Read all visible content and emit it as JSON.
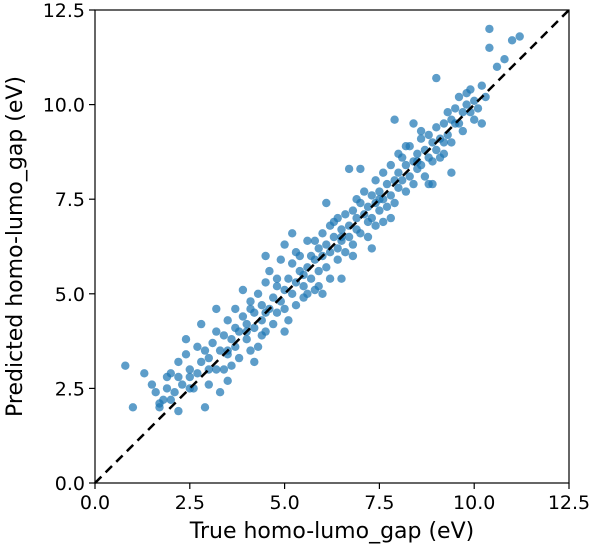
{
  "chart_data": {
    "type": "scatter",
    "title": "",
    "xlabel": "True homo-lumo_gap (eV)",
    "ylabel": "Predicted homo-lumo_gap (eV)",
    "xlim": [
      0.0,
      12.5
    ],
    "ylim": [
      0.0,
      12.5
    ],
    "xticks": [
      "0.0",
      "2.5",
      "5.0",
      "7.5",
      "10.0",
      "12.5"
    ],
    "yticks": [
      "0.0",
      "2.5",
      "5.0",
      "7.5",
      "10.0",
      "12.5"
    ],
    "grid": false,
    "legend": "none",
    "point_color": "#1f77b4",
    "reference_line": {
      "style": "dashed",
      "color": "#000000",
      "from": [
        0.0,
        0.0
      ],
      "to": [
        12.5,
        12.5
      ]
    },
    "series": [
      {
        "points": [
          [
            0.8,
            3.1
          ],
          [
            1.0,
            2.0
          ],
          [
            1.3,
            2.9
          ],
          [
            1.5,
            2.6
          ],
          [
            1.6,
            2.4
          ],
          [
            1.7,
            2.0
          ],
          [
            1.7,
            2.1
          ],
          [
            1.8,
            2.2
          ],
          [
            1.9,
            2.5
          ],
          [
            2.0,
            2.2
          ],
          [
            2.0,
            2.9
          ],
          [
            2.1,
            2.4
          ],
          [
            2.2,
            2.8
          ],
          [
            2.2,
            3.2
          ],
          [
            2.3,
            2.6
          ],
          [
            2.4,
            3.4
          ],
          [
            2.5,
            2.8
          ],
          [
            2.5,
            3.0
          ],
          [
            2.6,
            2.5
          ],
          [
            2.7,
            3.6
          ],
          [
            2.7,
            2.9
          ],
          [
            2.8,
            3.2
          ],
          [
            2.8,
            4.2
          ],
          [
            2.9,
            2.0
          ],
          [
            3.0,
            3.3
          ],
          [
            3.0,
            2.6
          ],
          [
            3.1,
            3.7
          ],
          [
            3.2,
            3.0
          ],
          [
            3.2,
            4.0
          ],
          [
            3.3,
            3.5
          ],
          [
            3.3,
            2.4
          ],
          [
            3.4,
            3.9
          ],
          [
            3.5,
            3.4
          ],
          [
            3.5,
            4.3
          ],
          [
            3.6,
            3.1
          ],
          [
            3.6,
            3.8
          ],
          [
            3.7,
            4.6
          ],
          [
            3.7,
            3.6
          ],
          [
            3.8,
            4.0
          ],
          [
            3.8,
            3.3
          ],
          [
            3.9,
            4.4
          ],
          [
            3.9,
            5.1
          ],
          [
            4.0,
            3.8
          ],
          [
            4.0,
            4.2
          ],
          [
            4.1,
            3.5
          ],
          [
            4.1,
            4.8
          ],
          [
            4.2,
            4.1
          ],
          [
            4.2,
            4.5
          ],
          [
            4.3,
            3.6
          ],
          [
            4.3,
            5.0
          ],
          [
            4.4,
            4.3
          ],
          [
            4.4,
            4.7
          ],
          [
            4.5,
            4.0
          ],
          [
            4.5,
            5.3
          ],
          [
            4.6,
            4.6
          ],
          [
            4.6,
            5.6
          ],
          [
            4.7,
            4.2
          ],
          [
            4.7,
            4.9
          ],
          [
            4.8,
            5.2
          ],
          [
            4.8,
            4.5
          ],
          [
            4.9,
            4.8
          ],
          [
            4.9,
            5.9
          ],
          [
            5.0,
            4.6
          ],
          [
            5.0,
            5.1
          ],
          [
            5.0,
            6.3
          ],
          [
            5.1,
            5.4
          ],
          [
            5.1,
            4.3
          ],
          [
            5.2,
            5.0
          ],
          [
            5.2,
            5.8
          ],
          [
            5.3,
            5.3
          ],
          [
            5.3,
            4.7
          ],
          [
            5.4,
            5.6
          ],
          [
            5.4,
            6.0
          ],
          [
            5.5,
            5.2
          ],
          [
            5.5,
            4.9
          ],
          [
            5.6,
            5.7
          ],
          [
            5.6,
            6.4
          ],
          [
            5.7,
            5.4
          ],
          [
            5.7,
            6.0
          ],
          [
            5.8,
            5.9
          ],
          [
            5.8,
            5.1
          ],
          [
            5.9,
            6.2
          ],
          [
            5.9,
            5.6
          ],
          [
            6.0,
            6.0
          ],
          [
            6.0,
            6.6
          ],
          [
            6.1,
            5.7
          ],
          [
            6.1,
            6.3
          ],
          [
            6.2,
            6.1
          ],
          [
            6.2,
            5.4
          ],
          [
            6.3,
            6.5
          ],
          [
            6.3,
            6.9
          ],
          [
            6.4,
            6.2
          ],
          [
            6.4,
            5.9
          ],
          [
            6.5,
            6.7
          ],
          [
            6.5,
            6.4
          ],
          [
            6.6,
            7.1
          ],
          [
            6.6,
            6.1
          ],
          [
            6.7,
            6.8
          ],
          [
            6.7,
            6.5
          ],
          [
            6.8,
            7.2
          ],
          [
            6.8,
            6.3
          ],
          [
            6.9,
            7.0
          ],
          [
            6.9,
            6.7
          ],
          [
            7.0,
            7.4
          ],
          [
            7.0,
            6.6
          ],
          [
            7.1,
            7.1
          ],
          [
            7.1,
            7.7
          ],
          [
            7.2,
            6.9
          ],
          [
            7.2,
            7.3
          ],
          [
            7.3,
            7.6
          ],
          [
            7.3,
            7.0
          ],
          [
            7.4,
            7.4
          ],
          [
            7.4,
            8.0
          ],
          [
            7.5,
            7.2
          ],
          [
            7.5,
            7.7
          ],
          [
            7.6,
            7.5
          ],
          [
            7.6,
            8.2
          ],
          [
            7.7,
            7.3
          ],
          [
            7.7,
            7.9
          ],
          [
            7.8,
            8.4
          ],
          [
            7.8,
            7.6
          ],
          [
            7.9,
            8.0
          ],
          [
            7.9,
            7.4
          ],
          [
            8.0,
            8.2
          ],
          [
            8.0,
            7.8
          ],
          [
            8.1,
            8.6
          ],
          [
            8.1,
            8.0
          ],
          [
            8.2,
            7.7
          ],
          [
            8.2,
            8.4
          ],
          [
            8.3,
            8.9
          ],
          [
            8.3,
            8.1
          ],
          [
            8.4,
            8.5
          ],
          [
            8.4,
            7.9
          ],
          [
            8.5,
            8.7
          ],
          [
            8.5,
            8.3
          ],
          [
            8.6,
            9.1
          ],
          [
            8.6,
            8.4
          ],
          [
            8.7,
            8.8
          ],
          [
            8.7,
            8.1
          ],
          [
            8.8,
            9.2
          ],
          [
            8.8,
            8.6
          ],
          [
            8.9,
            9.0
          ],
          [
            8.9,
            8.5
          ],
          [
            9.0,
            9.4
          ],
          [
            9.0,
            8.8
          ],
          [
            9.1,
            9.1
          ],
          [
            9.1,
            8.6
          ],
          [
            9.2,
            9.5
          ],
          [
            9.2,
            9.0
          ],
          [
            9.3,
            9.8
          ],
          [
            9.3,
            9.2
          ],
          [
            9.4,
            9.6
          ],
          [
            9.4,
            9.0
          ],
          [
            9.5,
            9.9
          ],
          [
            9.6,
            9.5
          ],
          [
            9.6,
            10.2
          ],
          [
            9.7,
            9.8
          ],
          [
            9.7,
            9.3
          ],
          [
            9.8,
            10.0
          ],
          [
            9.9,
            10.4
          ],
          [
            10.0,
            10.1
          ],
          [
            10.1,
            9.9
          ],
          [
            10.2,
            10.5
          ],
          [
            10.3,
            10.2
          ],
          [
            10.6,
            11.0
          ],
          [
            10.8,
            11.2
          ],
          [
            11.0,
            11.7
          ],
          [
            11.2,
            11.8
          ],
          [
            9.4,
            8.2
          ],
          [
            8.9,
            7.9
          ],
          [
            7.3,
            6.2
          ],
          [
            6.5,
            5.4
          ],
          [
            5.0,
            4.0
          ],
          [
            4.2,
            3.2
          ],
          [
            3.5,
            2.7
          ],
          [
            8.4,
            9.5
          ],
          [
            7.0,
            8.3
          ],
          [
            6.1,
            7.4
          ],
          [
            5.2,
            6.6
          ],
          [
            4.5,
            6.0
          ],
          [
            3.2,
            4.6
          ],
          [
            2.4,
            3.8
          ],
          [
            6.7,
            8.3
          ],
          [
            10.4,
            11.5
          ],
          [
            10.4,
            12.0
          ],
          [
            9.0,
            10.7
          ],
          [
            9.9,
            9.8
          ],
          [
            10.2,
            9.5
          ],
          [
            7.9,
            9.6
          ],
          [
            8.8,
            7.9
          ],
          [
            6.0,
            5.0
          ],
          [
            4.0,
            4.0
          ],
          [
            3.0,
            3.0
          ],
          [
            5.5,
            5.5
          ],
          [
            6.5,
            6.5
          ],
          [
            7.5,
            7.5
          ],
          [
            8.5,
            8.5
          ],
          [
            9.5,
            9.5
          ],
          [
            4.5,
            4.5
          ],
          [
            3.5,
            3.5
          ],
          [
            2.5,
            2.5
          ],
          [
            5.8,
            6.4
          ],
          [
            6.2,
            6.8
          ],
          [
            6.8,
            6.0
          ],
          [
            7.2,
            6.5
          ],
          [
            7.8,
            7.0
          ],
          [
            8.2,
            8.9
          ],
          [
            4.8,
            5.4
          ],
          [
            4.1,
            4.6
          ],
          [
            3.4,
            3.0
          ],
          [
            2.9,
            3.5
          ],
          [
            5.3,
            6.1
          ],
          [
            5.9,
            5.2
          ],
          [
            6.4,
            7.0
          ],
          [
            7.6,
            6.9
          ],
          [
            8.0,
            8.7
          ],
          [
            9.8,
            10.3
          ],
          [
            10.0,
            9.6
          ],
          [
            2.2,
            1.9
          ],
          [
            1.9,
            2.8
          ],
          [
            3.7,
            4.1
          ],
          [
            4.4,
            3.9
          ],
          [
            5.6,
            5.0
          ],
          [
            6.9,
            7.5
          ],
          [
            7.4,
            6.8
          ],
          [
            8.6,
            9.3
          ],
          [
            9.2,
            8.7
          ]
        ]
      }
    ]
  }
}
